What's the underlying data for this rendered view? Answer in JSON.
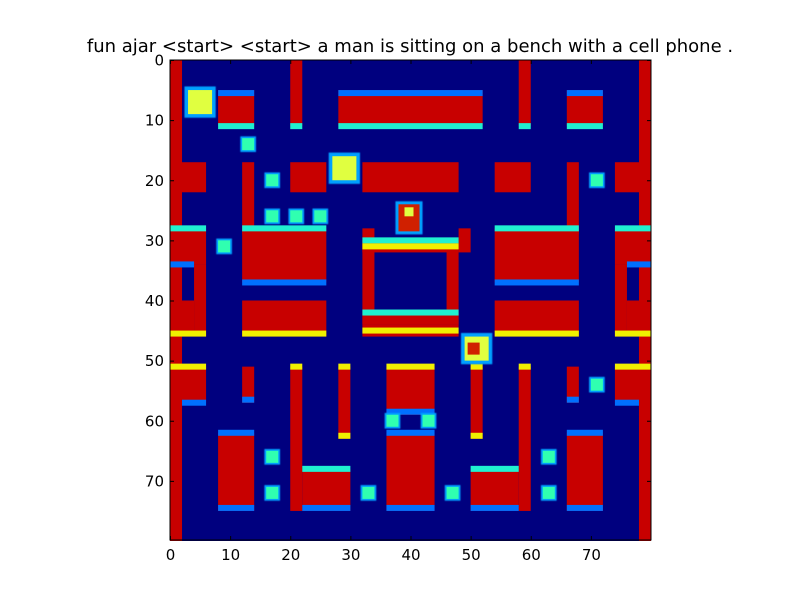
{
  "figure": {
    "title": "fun ajar <start> <start> a man is sitting on a bench with a cell phone ."
  },
  "image": {
    "type": "heatmap",
    "colormap": "jet",
    "x_ticks": [
      "0",
      "10",
      "20",
      "30",
      "40",
      "50",
      "60",
      "70"
    ],
    "y_ticks": [
      "0",
      "10",
      "20",
      "30",
      "40",
      "50",
      "60",
      "70"
    ],
    "xlim": [
      0,
      80
    ],
    "ylim": [
      80,
      0
    ]
  },
  "colors": {
    "background": "#00007f",
    "wall": "#c80000",
    "wall_edge_dark": "#0070ff",
    "wall_edge_light": "#20f0d0",
    "wall_edge_yellow": "#f0f000",
    "pellet": "#30ffb0",
    "ghost_body": "#e0ff40",
    "ghost_edge": "#00a0ff",
    "pacman": "#d02000"
  }
}
